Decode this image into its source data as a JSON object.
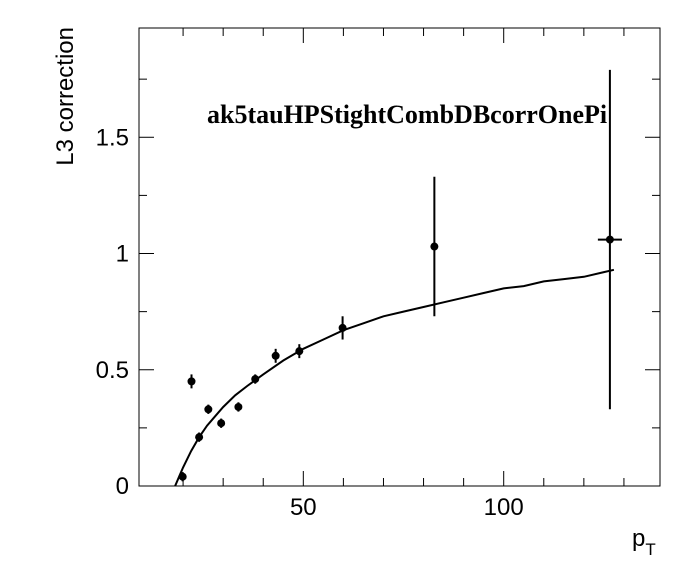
{
  "chart_data": {
    "type": "scatter",
    "title": "",
    "annotation": "ak5tauHPStightCombDBcorrOnePi",
    "xlabel": {
      "main": "p",
      "sub": "T"
    },
    "ylabel": "L3 correction",
    "xlim": [
      9,
      139
    ],
    "ylim": [
      0,
      1.97
    ],
    "x_major_ticks": [
      50,
      100
    ],
    "x_minor_ticks": [
      20,
      30,
      40,
      60,
      70,
      80,
      90,
      110,
      120,
      130
    ],
    "y_major_ticks": [
      0,
      0.5,
      1,
      1.5
    ],
    "y_minor_ticks": [
      0.25,
      0.75,
      1.25,
      1.75
    ],
    "tick_labels_x": [
      "50",
      "100"
    ],
    "tick_labels_y": [
      "0",
      "0.5",
      "1",
      "1.5"
    ],
    "grid": false,
    "legend": "none",
    "points": [
      {
        "x": 19.9,
        "y": 0.04,
        "yerr": 0.02
      },
      {
        "x": 22.1,
        "y": 0.45,
        "yerr": 0.03
      },
      {
        "x": 24.0,
        "y": 0.21,
        "yerr": 0.02
      },
      {
        "x": 26.3,
        "y": 0.33,
        "yerr": 0.02
      },
      {
        "x": 29.5,
        "y": 0.27,
        "yerr": 0.02
      },
      {
        "x": 33.8,
        "y": 0.34,
        "yerr": 0.02
      },
      {
        "x": 38.0,
        "y": 0.46,
        "yerr": 0.02
      },
      {
        "x": 43.1,
        "y": 0.56,
        "yerr": 0.03
      },
      {
        "x": 49.0,
        "y": 0.58,
        "yerr": 0.03
      },
      {
        "x": 59.8,
        "y": 0.68,
        "yerr": 0.05
      },
      {
        "x": 82.7,
        "y": 1.03,
        "yerr": 0.3
      },
      {
        "x": 126.5,
        "y": 1.06,
        "yerr": 0.73,
        "xerr": 3.0
      }
    ],
    "fit_curve": {
      "x": [
        18.0,
        19,
        20,
        22,
        24,
        26,
        28,
        30,
        33,
        36,
        40,
        45,
        50,
        55,
        60,
        65,
        70,
        75,
        80,
        85,
        90,
        95,
        100,
        105,
        110,
        115,
        120,
        125,
        127.5
      ],
      "y": [
        0.0,
        0.04,
        0.08,
        0.15,
        0.21,
        0.26,
        0.3,
        0.34,
        0.39,
        0.43,
        0.48,
        0.54,
        0.59,
        0.63,
        0.67,
        0.7,
        0.73,
        0.75,
        0.77,
        0.79,
        0.81,
        0.83,
        0.85,
        0.86,
        0.88,
        0.89,
        0.9,
        0.92,
        0.93
      ]
    },
    "colors": {
      "marker": "#000000",
      "line": "#000000",
      "frame": "#000000"
    }
  }
}
